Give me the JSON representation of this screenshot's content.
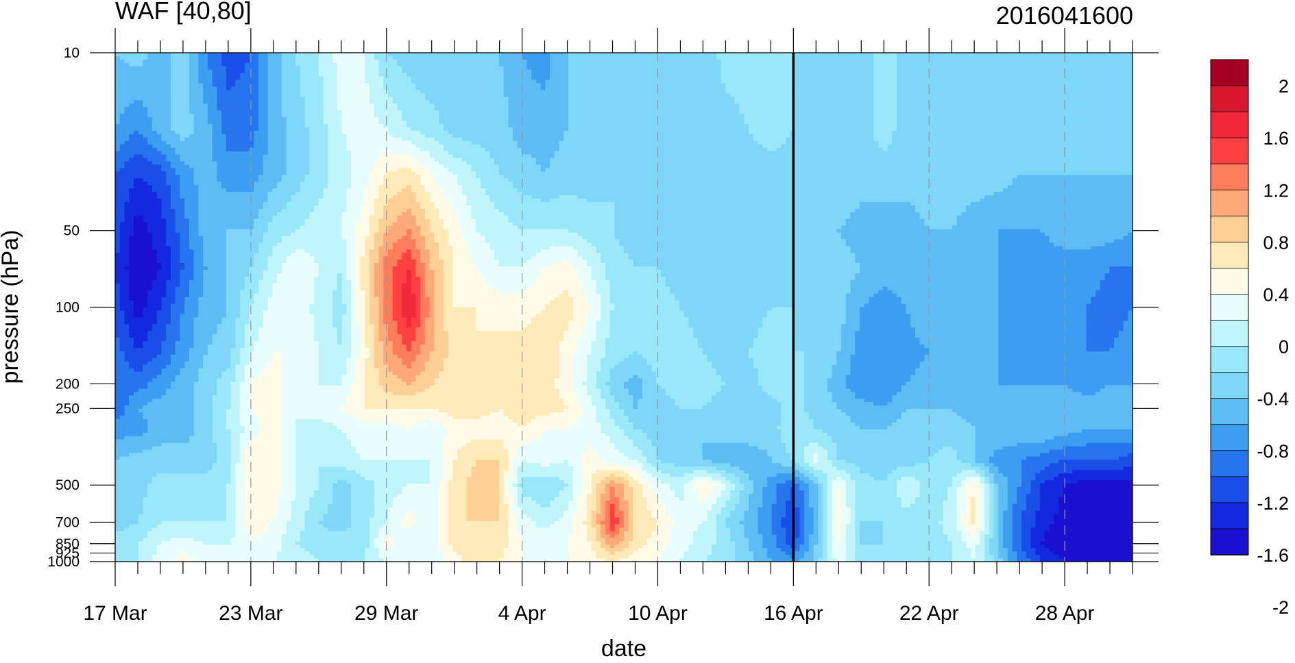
{
  "chart_data": {
    "type": "heatmap",
    "title": "WAF [40,80]",
    "date_label": "2016041600",
    "xlabel": "date",
    "ylabel": "pressure (hPa)",
    "x_ticks": [
      "17 Mar",
      "23 Mar",
      "29 Mar",
      "4 Apr",
      "10 Apr",
      "16 Apr",
      "22 Apr",
      "28 Apr"
    ],
    "y_ticks": [
      "10",
      "50",
      "100",
      "200",
      "250",
      "500",
      "700",
      "850",
      "925",
      "1000"
    ],
    "y_scale": "log",
    "marker_date": "16 Apr",
    "colorbar": {
      "labels": [
        "2",
        "1.6",
        "1.2",
        "0.8",
        "0.4",
        "0",
        "-0.4",
        "-0.8",
        "-1.2",
        "-1.6",
        "-2"
      ],
      "colors": [
        "#a50021",
        "#d6162a",
        "#f0283a",
        "#ff4040",
        "#ff7d5a",
        "#ffa878",
        "#ffcf96",
        "#ffeab8",
        "#fffbe6",
        "#e8fdfd",
        "#bff5fb",
        "#99e8fa",
        "#7fd7f8",
        "#5ebcf5",
        "#3c9ef1",
        "#2674ee",
        "#1a4ee8",
        "#1428e0",
        "#1a10d0"
      ]
    },
    "z": [
      [
        -0.6,
        -0.5,
        -0.7,
        -0.5,
        -1.0,
        -1.3,
        -1.2,
        -0.7,
        -0.4,
        -0.2,
        0.1,
        0.0,
        -0.4,
        -0.5,
        -0.6,
        -0.5,
        -0.4,
        -0.6,
        -0.8,
        -0.9,
        -0.6,
        -0.5,
        -0.5,
        -0.5,
        -0.5,
        -0.6,
        -0.6,
        -0.3,
        -0.3,
        -0.3,
        -0.4,
        -0.4,
        -0.4,
        -0.5,
        -0.3,
        -0.5,
        -0.5,
        -0.5,
        -0.5,
        -0.5,
        -0.5,
        -0.5,
        -0.5,
        -0.5,
        -0.5,
        -0.5
      ],
      [
        -0.8,
        -1.0,
        -0.7,
        -0.5,
        -0.7,
        -1.1,
        -1.1,
        -0.7,
        -0.5,
        -0.3,
        0.0,
        0.1,
        0.0,
        -0.2,
        -0.3,
        -0.5,
        -0.5,
        -0.5,
        -0.7,
        -0.7,
        -0.6,
        -0.5,
        -0.5,
        -0.5,
        -0.6,
        -0.6,
        -0.5,
        -0.5,
        -0.4,
        -0.3,
        -0.4,
        -0.4,
        -0.4,
        -0.5,
        -0.3,
        -0.5,
        -0.5,
        -0.5,
        -0.5,
        -0.5,
        -0.4,
        -0.5,
        -0.5,
        -0.5,
        -0.5,
        -0.5
      ],
      [
        -1.2,
        -1.4,
        -1.3,
        -0.9,
        -0.7,
        -0.9,
        -0.9,
        -0.7,
        -0.5,
        -0.3,
        -0.1,
        0.1,
        0.4,
        0.5,
        0.2,
        0.0,
        -0.2,
        -0.4,
        -0.5,
        -0.6,
        -0.5,
        -0.5,
        -0.4,
        -0.4,
        -0.4,
        -0.5,
        -0.5,
        -0.5,
        -0.5,
        -0.5,
        -0.5,
        -0.4,
        -0.4,
        -0.5,
        -0.5,
        -0.5,
        -0.5,
        -0.5,
        -0.5,
        -0.5,
        -0.6,
        -0.6,
        -0.6,
        -0.6,
        -0.6,
        -0.6
      ],
      [
        -1.3,
        -1.7,
        -1.5,
        -1.1,
        -0.7,
        -0.6,
        -0.6,
        -0.3,
        -0.2,
        -0.1,
        0.0,
        0.3,
        0.8,
        1.0,
        0.6,
        0.3,
        0.0,
        -0.1,
        -0.2,
        -0.2,
        -0.2,
        -0.3,
        -0.4,
        -0.5,
        -0.5,
        -0.5,
        -0.5,
        -0.5,
        -0.5,
        -0.5,
        -0.5,
        -0.5,
        -0.6,
        -0.7,
        -0.7,
        -0.7,
        -0.6,
        -0.6,
        -0.7,
        -0.8,
        -0.8,
        -0.8,
        -0.7,
        -0.7,
        -0.7,
        -0.8
      ],
      [
        -1.4,
        -1.8,
        -1.6,
        -1.2,
        -0.8,
        -0.6,
        -0.4,
        -0.1,
        0.2,
        0.0,
        -0.2,
        0.5,
        1.1,
        1.4,
        0.8,
        0.4,
        0.2,
        0.0,
        0.0,
        0.2,
        0.3,
        0.0,
        -0.3,
        -0.4,
        -0.4,
        -0.5,
        -0.5,
        -0.5,
        -0.5,
        -0.5,
        -0.5,
        -0.5,
        -0.5,
        -0.6,
        -0.7,
        -0.7,
        -0.6,
        -0.6,
        -0.7,
        -0.8,
        -0.9,
        -0.9,
        -0.9,
        -0.9,
        -1.0,
        -1.0
      ],
      [
        -1.3,
        -1.7,
        -1.4,
        -1.0,
        -0.7,
        -0.6,
        -0.2,
        0.1,
        0.2,
        -0.1,
        -0.3,
        0.4,
        1.1,
        1.6,
        0.9,
        0.4,
        0.4,
        0.3,
        0.3,
        0.4,
        0.5,
        0.2,
        -0.2,
        -0.3,
        -0.3,
        -0.4,
        -0.5,
        -0.6,
        -0.5,
        -0.4,
        -0.4,
        -0.4,
        -0.5,
        -0.8,
        -0.9,
        -0.8,
        -0.6,
        -0.6,
        -0.7,
        -0.8,
        -0.9,
        -0.9,
        -0.9,
        -1.0,
        -1.1,
        -1.0
      ],
      [
        -1.1,
        -1.4,
        -1.2,
        -0.9,
        -0.6,
        -0.5,
        0.0,
        0.2,
        0.2,
        0.0,
        -0.2,
        0.3,
        0.9,
        1.2,
        0.8,
        0.5,
        0.4,
        0.5,
        0.5,
        0.6,
        0.3,
        0.0,
        -0.3,
        -0.4,
        -0.3,
        -0.3,
        -0.4,
        -0.5,
        -0.4,
        -0.3,
        -0.4,
        -0.4,
        -0.6,
        -0.9,
        -1.0,
        -0.9,
        -0.8,
        -0.7,
        -0.7,
        -0.8,
        -0.9,
        -0.9,
        -0.9,
        -1.0,
        -1.0,
        -0.9
      ],
      [
        -1.0,
        -1.1,
        -0.9,
        -0.7,
        -0.5,
        -0.3,
        0.2,
        0.3,
        0.0,
        0.0,
        0.0,
        0.4,
        0.7,
        0.8,
        0.6,
        0.5,
        0.4,
        0.5,
        0.4,
        0.5,
        0.3,
        -0.1,
        -0.5,
        -0.7,
        -0.4,
        -0.3,
        -0.3,
        -0.4,
        -0.5,
        -0.3,
        -0.3,
        -0.5,
        -0.7,
        -1.0,
        -1.0,
        -0.8,
        -0.7,
        -0.6,
        -0.7,
        -0.8,
        -0.8,
        -0.8,
        -0.8,
        -0.9,
        -0.8,
        -0.8
      ],
      [
        -1.2,
        -0.8,
        -0.7,
        -0.7,
        -0.5,
        -0.2,
        0.2,
        0.3,
        0.0,
        0.1,
        0.2,
        0.4,
        0.4,
        0.4,
        0.4,
        0.5,
        0.5,
        0.4,
        0.5,
        0.5,
        0.4,
        0.1,
        -0.3,
        -0.6,
        -0.5,
        -0.4,
        -0.4,
        -0.5,
        -0.5,
        -0.5,
        -0.3,
        -0.5,
        -0.6,
        -0.7,
        -0.8,
        -0.6,
        -0.6,
        -0.6,
        -0.7,
        -0.7,
        -0.7,
        -0.7,
        -0.7,
        -0.7,
        -0.7,
        -0.6
      ],
      [
        -0.9,
        -0.9,
        -0.7,
        -0.7,
        -0.5,
        -0.2,
        0.1,
        0.3,
        0.0,
        -0.1,
        0.0,
        0.1,
        0.1,
        0.2,
        0.0,
        0.3,
        0.3,
        0.3,
        0.4,
        0.2,
        0.2,
        0.1,
        -0.1,
        -0.4,
        -0.5,
        -0.6,
        -0.6,
        -0.5,
        -0.4,
        -0.5,
        -0.2,
        -0.4,
        -0.5,
        -0.6,
        -0.6,
        -0.5,
        -0.5,
        -0.5,
        -0.6,
        -0.6,
        -0.6,
        -0.6,
        -0.7,
        -0.8,
        -0.8,
        -0.8
      ],
      [
        -0.6,
        -0.5,
        -0.5,
        -0.5,
        -0.5,
        -0.3,
        0.4,
        0.3,
        0.0,
        -0.2,
        -0.1,
        0.0,
        0.0,
        0.0,
        0.0,
        0.4,
        0.6,
        0.6,
        0.0,
        0.1,
        0.0,
        0.3,
        0.1,
        0.0,
        -0.4,
        -0.5,
        -0.6,
        -0.7,
        -0.8,
        -0.6,
        -0.4,
        0.1,
        -0.4,
        -0.5,
        -0.5,
        -0.5,
        -0.4,
        -0.3,
        -0.6,
        -0.9,
        -1.0,
        -1.1,
        -1.2,
        -1.2,
        -1.2,
        -1.3
      ],
      [
        -0.5,
        -0.5,
        -0.3,
        -0.3,
        -0.3,
        -0.2,
        0.4,
        0.3,
        0.0,
        -0.2,
        -0.5,
        -0.3,
        -0.1,
        0.0,
        0.0,
        0.5,
        0.7,
        0.6,
        -0.3,
        -0.4,
        -0.2,
        0.4,
        1.0,
        0.5,
        0.1,
        -0.1,
        0.4,
        0.0,
        -0.5,
        -0.9,
        -1.2,
        -0.6,
        0.2,
        -0.3,
        -0.4,
        0.0,
        -0.3,
        -0.2,
        0.4,
        -0.6,
        -1.0,
        -1.4,
        -1.6,
        -1.7,
        -1.7,
        -1.7
      ],
      [
        -0.5,
        -0.4,
        -0.2,
        -0.2,
        -0.2,
        -0.2,
        0.3,
        0.2,
        -0.1,
        -0.4,
        -0.5,
        -0.3,
        0.0,
        0.3,
        0.0,
        0.6,
        0.6,
        0.6,
        0.1,
        -0.1,
        0.1,
        0.5,
        1.4,
        0.6,
        0.4,
        0.1,
        0.0,
        -0.4,
        -0.7,
        -1.0,
        -1.4,
        -0.7,
        0.3,
        -0.4,
        -0.4,
        -0.3,
        -0.3,
        -0.1,
        0.5,
        -0.6,
        -1.2,
        -1.5,
        -1.7,
        -1.8,
        -1.9,
        -1.9
      ],
      [
        -0.3,
        -0.2,
        0.0,
        0.1,
        0.0,
        0.0,
        0.2,
        0.1,
        -0.2,
        -0.3,
        -0.3,
        -0.3,
        0.3,
        0.0,
        0.0,
        0.5,
        0.6,
        0.5,
        0.2,
        0.2,
        0.2,
        0.4,
        0.9,
        0.5,
        0.3,
        0.1,
        -0.1,
        -0.3,
        -0.6,
        -0.9,
        -1.3,
        -0.6,
        0.2,
        -0.4,
        -0.4,
        -0.4,
        -0.3,
        -0.2,
        0.1,
        -0.6,
        -1.2,
        -1.6,
        -1.9,
        -2.0,
        -2.1,
        -2.0
      ],
      [
        -0.3,
        -0.2,
        0.1,
        0.3,
        0.1,
        0.0,
        0.0,
        0.0,
        -0.1,
        -0.2,
        -0.2,
        -0.2,
        0.0,
        0.0,
        0.1,
        0.3,
        0.5,
        0.4,
        0.2,
        0.1,
        0.2,
        0.3,
        0.4,
        0.3,
        0.2,
        0.0,
        -0.2,
        -0.3,
        -0.5,
        -0.8,
        -0.9,
        -0.5,
        0.1,
        -0.3,
        -0.3,
        -0.3,
        -0.2,
        -0.2,
        0.0,
        -0.5,
        -1.0,
        -1.4,
        -1.6,
        -1.7,
        -1.7,
        -1.7
      ]
    ]
  }
}
